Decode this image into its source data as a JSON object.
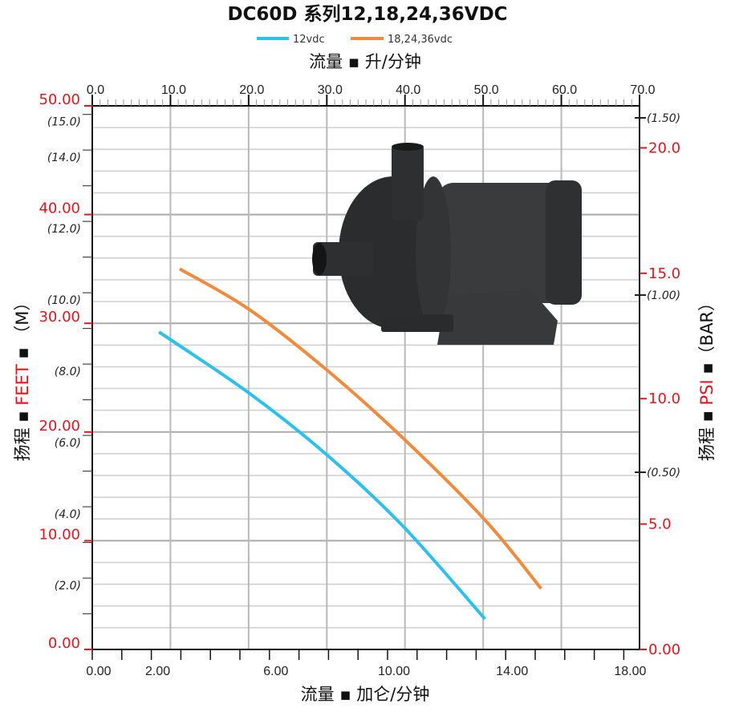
{
  "chart_data": {
    "type": "line",
    "title": "DC60D 系列12,18,24,36VDC",
    "legend": {
      "placement": "top-center",
      "entries": [
        "12vdc",
        "18,24,36vdc"
      ]
    },
    "x_top": {
      "label": "流量 ▪ 升/分钟",
      "range": [
        0,
        70
      ],
      "ticks": [
        "0.0",
        "10.0",
        "20.0",
        "30.0",
        "40.0",
        "50.0",
        "60.0",
        "70.0"
      ],
      "tick_values": [
        0,
        10,
        20,
        30,
        40,
        50,
        60,
        70
      ]
    },
    "x_bottom": {
      "label": "流量 ▪ 加仑/分钟",
      "range": [
        0,
        18.5
      ],
      "ticks": [
        "0.00",
        "2.00",
        "6.00",
        "10.00",
        "14.00",
        "18.00"
      ],
      "tick_values": [
        0,
        2,
        6,
        10,
        14,
        18
      ]
    },
    "y_left_feet": {
      "label_prefix": "扬程 ▪ ",
      "label_main": "FEET",
      "label_suffix": " ▪ （M）",
      "range": [
        0,
        50
      ],
      "ticks": [
        "0.00",
        "10.00",
        "20.00",
        "30.00",
        "40.00",
        "50.00"
      ],
      "tick_values": [
        0,
        10,
        20,
        30,
        40,
        50
      ]
    },
    "y_left_meters": {
      "ticks": [
        "(2.0)",
        "(4.0)",
        "(6.0)",
        "(8.0)",
        "(10.0)",
        "(12.0)",
        "(14.0)",
        "(15.0)"
      ],
      "tick_values": [
        2,
        4,
        6,
        8,
        10,
        12,
        14,
        15
      ]
    },
    "y_right_psi": {
      "label_prefix": "扬程 ▪ ",
      "label_main": "PSI",
      "label_suffix": " ▪（BAR）",
      "ticks": [
        "0.00",
        "5.0",
        "10.0",
        "15.0",
        "20.0"
      ],
      "tick_values": [
        0,
        5,
        10,
        15,
        20
      ]
    },
    "y_right_bar": {
      "ticks": [
        "(0.50)",
        "(1.00)",
        "(1.50)"
      ],
      "tick_values": [
        0.5,
        1.0,
        1.5
      ]
    },
    "grid": true,
    "series": [
      {
        "name": "12vdc",
        "color": "#2cc0ee",
        "x_gpm": [
          2.26,
          5.3,
          7.9,
          10.5,
          13.3
        ],
        "y_feet": [
          29.2,
          23.6,
          18.0,
          11.4,
          2.8
        ]
      },
      {
        "name": "18,24,36vdc",
        "color": "#f28a3c",
        "x_gpm": [
          2.96,
          5.3,
          7.9,
          10.5,
          13.3,
          15.2
        ],
        "y_feet": [
          35.0,
          31.3,
          25.8,
          19.5,
          11.9,
          5.6
        ]
      }
    ]
  },
  "colors": {
    "accent_red": "#e8141c",
    "grid": "#b9b9b9"
  },
  "image": {
    "icon": "water-pump-product-photo"
  }
}
